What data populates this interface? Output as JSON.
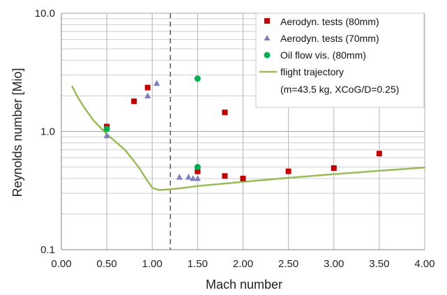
{
  "chart_data": {
    "type": "scatter",
    "title": "",
    "xlabel": "Mach number",
    "ylabel": "Reynolds number [Mio]",
    "xlim": [
      0,
      4
    ],
    "ylim": [
      0.1,
      10
    ],
    "yscale": "log",
    "grid": true,
    "legend_position": "top-right",
    "x_ticks": [
      "0.00",
      "0.50",
      "1.00",
      "1.50",
      "2.00",
      "2.50",
      "3.00",
      "3.50",
      "4.00"
    ],
    "y_ticks": [
      "0.1",
      "1.0",
      "10.0"
    ],
    "reference_line": {
      "x": 1.2,
      "style": "dashed",
      "color": "#555555"
    },
    "series": [
      {
        "name": "Aerodyn. tests (80mm)",
        "marker": "square",
        "color": "#c00000",
        "x": [
          0.5,
          0.8,
          0.95,
          1.5,
          1.8,
          1.5,
          1.8,
          2.0,
          2.5,
          3.0,
          3.5
        ],
        "y": [
          1.1,
          1.8,
          2.35,
          0.46,
          1.45,
          0.46,
          0.42,
          0.4,
          0.46,
          0.49,
          0.65
        ]
      },
      {
        "name": "Aerodyn. tests (70mm)",
        "marker": "triangle",
        "color": "#7f7fbf",
        "x": [
          0.5,
          0.95,
          1.05,
          1.3,
          1.4,
          1.45,
          1.5
        ],
        "y": [
          0.92,
          2.0,
          2.55,
          0.41,
          0.41,
          0.4,
          0.4
        ]
      },
      {
        "name": "Oil flow vis. (80mm)",
        "marker": "circle",
        "color": "#00b050",
        "x": [
          0.5,
          1.5,
          1.5
        ],
        "y": [
          1.05,
          2.8,
          0.5
        ]
      },
      {
        "name": "flight trajectory\n(m=43.5 kg, XCoG/D=0.25)",
        "marker": "line",
        "color": "#9bbb59",
        "x": [
          0.12,
          0.18,
          0.25,
          0.35,
          0.5,
          0.7,
          0.85,
          0.95,
          1.0,
          1.05,
          1.1,
          1.15,
          1.2,
          1.3,
          1.5,
          2.0,
          2.5,
          3.0,
          3.5,
          4.0
        ],
        "y": [
          2.4,
          1.95,
          1.6,
          1.25,
          0.95,
          0.7,
          0.5,
          0.38,
          0.335,
          0.322,
          0.32,
          0.322,
          0.325,
          0.33,
          0.345,
          0.375,
          0.405,
          0.435,
          0.465,
          0.495
        ]
      }
    ]
  },
  "legend": {
    "items": [
      {
        "label": "Aerodyn. tests (80mm)"
      },
      {
        "label": "Aerodyn. tests (70mm)"
      },
      {
        "label": "Oil flow vis. (80mm)"
      },
      {
        "label": "flight trajectory"
      },
      {
        "label": "(m=43.5 kg, XCoG/D=0.25)"
      }
    ]
  }
}
